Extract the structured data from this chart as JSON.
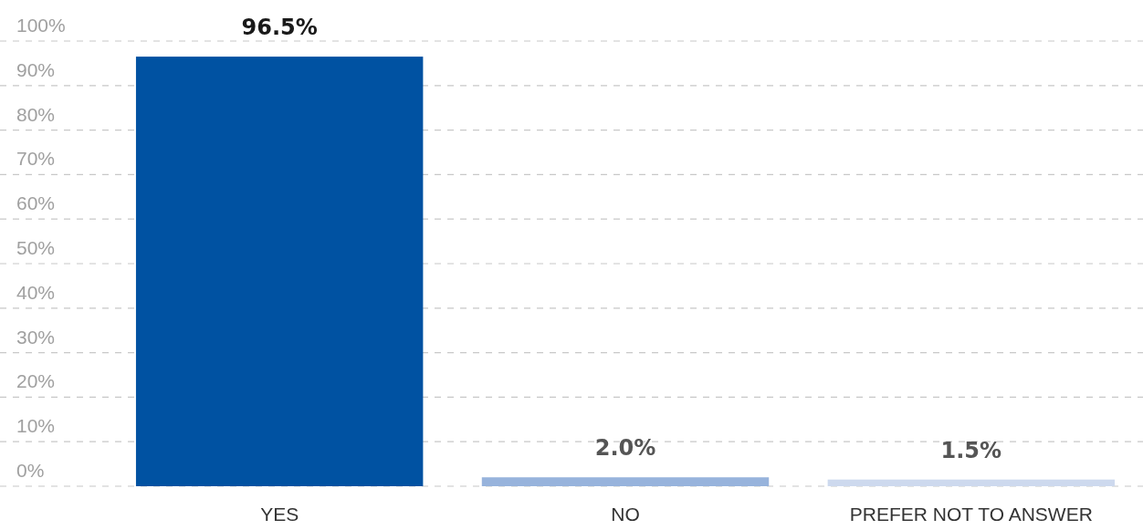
{
  "chart_data": {
    "type": "bar",
    "categories": [
      "YES",
      "NO",
      "PREFER NOT TO ANSWER"
    ],
    "values": [
      96.5,
      2.0,
      1.5
    ],
    "colors": [
      "#0052a2",
      "#97b3dc",
      "#cdd9ee"
    ],
    "value_labels": [
      "96.5%",
      "2.0%",
      "1.5%"
    ],
    "ylim": [
      0,
      100
    ],
    "yticks": [
      {
        "value": 0,
        "label": "0%"
      },
      {
        "value": 10,
        "label": "10%"
      },
      {
        "value": 20,
        "label": "20%"
      },
      {
        "value": 30,
        "label": "30%"
      },
      {
        "value": 40,
        "label": "40%"
      },
      {
        "value": 50,
        "label": "50%"
      },
      {
        "value": 60,
        "label": "60%"
      },
      {
        "value": 70,
        "label": "70%"
      },
      {
        "value": 80,
        "label": "80%"
      },
      {
        "value": 90,
        "label": "90%"
      },
      {
        "value": 100,
        "label": "100%"
      }
    ],
    "grid": "y"
  }
}
